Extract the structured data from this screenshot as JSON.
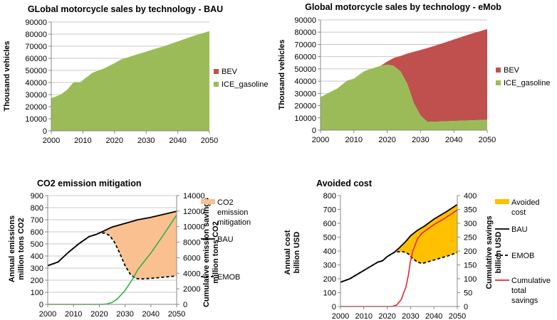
{
  "chart_data": [
    {
      "type": "area",
      "title": "GLobal motorcycle sales by technology - BAU",
      "ylabel": "Thousand  vehicles",
      "xlim": [
        2000,
        2050
      ],
      "ylim": [
        0,
        90000
      ],
      "xticks": [
        "2000",
        "2010",
        "2020",
        "2030",
        "2040",
        "2050"
      ],
      "yticks": [
        "0",
        "10000",
        "20000",
        "30000",
        "40000",
        "50000",
        "60000",
        "70000",
        "80000",
        "90000"
      ],
      "grid": true,
      "legend_position": "right",
      "stacked": true,
      "legend": [
        "BEV",
        "ICE_gasoline"
      ],
      "series": [
        {
          "name": "BEV",
          "color": "#c0504d",
          "points": [
            [
              2000,
              0
            ],
            [
              2050,
              0
            ]
          ]
        },
        {
          "name": "ICE_gasoline",
          "color": "#9bbb59",
          "points": [
            [
              2000,
              27000
            ],
            [
              2003,
              30000
            ],
            [
              2005,
              34000
            ],
            [
              2007,
              40000
            ],
            [
              2008,
              40500
            ],
            [
              2009,
              40000
            ],
            [
              2011,
              44000
            ],
            [
              2013,
              48000
            ],
            [
              2015,
              50000
            ],
            [
              2017,
              52000
            ],
            [
              2020,
              56000
            ],
            [
              2022,
              59000
            ],
            [
              2025,
              61500
            ],
            [
              2028,
              64000
            ],
            [
              2030,
              65500
            ],
            [
              2033,
              68000
            ],
            [
              2035,
              69500
            ],
            [
              2040,
              74000
            ],
            [
              2045,
              78500
            ],
            [
              2050,
              82500
            ]
          ]
        }
      ]
    },
    {
      "type": "area",
      "title": "Global motorcycle sales by technology - eMob",
      "ylabel": "Thousand  vehicles",
      "xlim": [
        2000,
        2050
      ],
      "ylim": [
        0,
        90000
      ],
      "xticks": [
        "2000",
        "2010",
        "2020",
        "2030",
        "2040",
        "2050"
      ],
      "yticks": [
        "0",
        "10000",
        "20000",
        "30000",
        "40000",
        "50000",
        "60000",
        "70000",
        "80000",
        "90000"
      ],
      "grid": true,
      "legend_position": "right",
      "stacked": true,
      "legend": [
        "BEV",
        "ICE_gasoline"
      ],
      "x": [
        2000,
        2005,
        2008,
        2010,
        2013,
        2015,
        2018,
        2020,
        2022,
        2024,
        2026,
        2028,
        2030,
        2032,
        2035,
        2040,
        2045,
        2050
      ],
      "series": [
        {
          "name": "ICE_gasoline",
          "color": "#9bbb59",
          "values": [
            27000,
            34000,
            40500,
            42000,
            48000,
            50000,
            52500,
            53500,
            52500,
            48000,
            38000,
            22000,
            12000,
            7000,
            7000,
            7500,
            8000,
            8500
          ]
        },
        {
          "name": "BEV",
          "color": "#c0504d",
          "values": [
            0,
            0,
            0,
            0,
            0,
            0,
            0,
            2500,
            6500,
            12500,
            24500,
            42000,
            53500,
            60000,
            62500,
            66500,
            70500,
            74000
          ]
        }
      ]
    },
    {
      "type": "line",
      "title": "CO2 emission mitigation",
      "ylabel": [
        "Annual emissions",
        "million tons CO2"
      ],
      "y2label": [
        "Cumulative emission savings",
        "million tons CO2"
      ],
      "xlim": [
        2000,
        2050
      ],
      "ylim": [
        0,
        900
      ],
      "y2lim": [
        0,
        14000
      ],
      "xticks": [
        "2000",
        "2010",
        "2020",
        "2030",
        "2040",
        "2050"
      ],
      "yticks": [
        "0",
        "100",
        "200",
        "300",
        "400",
        "500",
        "600",
        "700",
        "800",
        "900"
      ],
      "y2ticks": [
        "0",
        "2000",
        "4000",
        "6000",
        "8000",
        "10000",
        "12000",
        "14000"
      ],
      "grid": true,
      "legend_position": "right",
      "legend": [
        [
          "CO2",
          "emission",
          "mitigation"
        ],
        [
          "BAU"
        ],
        [
          "EMOB"
        ]
      ],
      "fill": {
        "name": "CO2 emission mitigation",
        "color": "#fac090"
      },
      "series": [
        {
          "name": "BAU",
          "color": "#000000",
          "dash": false,
          "axis": "left",
          "points": [
            [
              2000,
              320
            ],
            [
              2004,
              350
            ],
            [
              2008,
              430
            ],
            [
              2012,
              500
            ],
            [
              2016,
              560
            ],
            [
              2019,
              580
            ],
            [
              2022,
              610
            ],
            [
              2025,
              640
            ],
            [
              2030,
              670
            ],
            [
              2035,
              700
            ],
            [
              2040,
              720
            ],
            [
              2045,
              745
            ],
            [
              2050,
              770
            ]
          ]
        },
        {
          "name": "EMOB",
          "color": "#000000",
          "dash": true,
          "axis": "left",
          "points": [
            [
              2000,
              320
            ],
            [
              2004,
              350
            ],
            [
              2008,
              430
            ],
            [
              2012,
              500
            ],
            [
              2016,
              560
            ],
            [
              2019,
              580
            ],
            [
              2020,
              590
            ],
            [
              2022,
              590
            ],
            [
              2024,
              570
            ],
            [
              2026,
              510
            ],
            [
              2028,
              420
            ],
            [
              2030,
              320
            ],
            [
              2032,
              250
            ],
            [
              2034,
              215
            ],
            [
              2036,
              210
            ],
            [
              2040,
              215
            ],
            [
              2045,
              225
            ],
            [
              2050,
              235
            ]
          ]
        },
        {
          "name": "Cumulative emission savings",
          "color": "#2db34a",
          "dash": false,
          "axis": "right",
          "points": [
            [
              2000,
              0
            ],
            [
              2021,
              0
            ],
            [
              2023,
              50
            ],
            [
              2025,
              250
            ],
            [
              2027,
              700
            ],
            [
              2030,
              1800
            ],
            [
              2033,
              3300
            ],
            [
              2035,
              4500
            ],
            [
              2040,
              6600
            ],
            [
              2045,
              9000
            ],
            [
              2050,
              11500
            ]
          ]
        }
      ]
    },
    {
      "type": "line",
      "title": "Avoided cost",
      "ylabel": [
        "Annual cost",
        "billion USD"
      ],
      "y2label": [
        "Cumulative savings",
        "billion USD"
      ],
      "xlim": [
        2000,
        2050
      ],
      "ylim": [
        0,
        800
      ],
      "y2lim": [
        0,
        400
      ],
      "xticks": [
        "2000",
        "2010",
        "2020",
        "2030",
        "2040",
        "2050"
      ],
      "yticks": [
        "0",
        "100",
        "200",
        "300",
        "400",
        "500",
        "600",
        "700",
        "800"
      ],
      "y2ticks": [
        "0",
        "50",
        "100",
        "150",
        "200",
        "250",
        "300",
        "350",
        "400"
      ],
      "grid": false,
      "legend_position": "right",
      "legend": [
        [
          "Avoided",
          "cost"
        ],
        [
          "BAU"
        ],
        [
          "EMOB"
        ],
        [
          "Cumulative",
          "total",
          "savings"
        ]
      ],
      "fill": {
        "name": "Avoided cost",
        "color": "#ffc000"
      },
      "series": [
        {
          "name": "BAU",
          "color": "#000000",
          "dash": false,
          "axis": "left",
          "points": [
            [
              2000,
              175
            ],
            [
              2004,
              200
            ],
            [
              2008,
              240
            ],
            [
              2012,
              280
            ],
            [
              2016,
              320
            ],
            [
              2018,
              330
            ],
            [
              2020,
              360
            ],
            [
              2023,
              390
            ],
            [
              2025,
              420
            ],
            [
              2028,
              470
            ],
            [
              2030,
              510
            ],
            [
              2033,
              550
            ],
            [
              2036,
              580
            ],
            [
              2040,
              630
            ],
            [
              2045,
              680
            ],
            [
              2050,
              735
            ]
          ]
        },
        {
          "name": "EMOB",
          "color": "#000000",
          "dash": true,
          "axis": "left",
          "points": [
            [
              2000,
              175
            ],
            [
              2004,
              200
            ],
            [
              2008,
              240
            ],
            [
              2012,
              280
            ],
            [
              2016,
              320
            ],
            [
              2018,
              330
            ],
            [
              2020,
              360
            ],
            [
              2023,
              390
            ],
            [
              2025,
              395
            ],
            [
              2027,
              395
            ],
            [
              2029,
              380
            ],
            [
              2031,
              345
            ],
            [
              2033,
              320
            ],
            [
              2035,
              310
            ],
            [
              2038,
              325
            ],
            [
              2042,
              345
            ],
            [
              2046,
              365
            ],
            [
              2050,
              390
            ]
          ]
        },
        {
          "name": "Cumulative total savings",
          "color": "#e8262a",
          "dash": false,
          "axis": "right",
          "points": [
            [
              2000,
              0
            ],
            [
              2022,
              0
            ],
            [
              2024,
              5
            ],
            [
              2026,
              25
            ],
            [
              2028,
              70
            ],
            [
              2029,
              110
            ],
            [
              2030,
              165
            ],
            [
              2031,
              200
            ],
            [
              2033,
              245
            ],
            [
              2035,
              265
            ],
            [
              2040,
              295
            ],
            [
              2045,
              320
            ],
            [
              2050,
              348
            ]
          ]
        }
      ]
    }
  ]
}
